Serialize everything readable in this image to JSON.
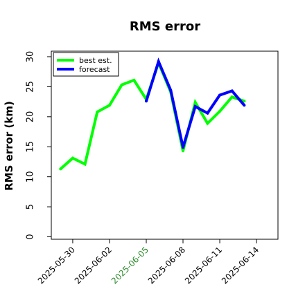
{
  "chart_data": {
    "type": "line",
    "title": "RMS error",
    "xlabel": "",
    "ylabel": "RMS error (km)",
    "ylim": [
      0,
      30
    ],
    "xlim": [
      "2025-05-28T06:00",
      "2025-06-15T18:00"
    ],
    "yticks": [
      0,
      5,
      10,
      15,
      20,
      25,
      30
    ],
    "xticks": [
      {
        "date": "2025-05-30",
        "label": "2025-05-30"
      },
      {
        "date": "2025-06-02",
        "label": "2025-06-02"
      },
      {
        "date": "2025-06-05",
        "label": "2025-06-05"
      },
      {
        "date": "2025-06-08",
        "label": "2025-06-08"
      },
      {
        "date": "2025-06-11",
        "label": "2025-06-11"
      },
      {
        "date": "2025-06-14",
        "label": "2025-06-14"
      }
    ],
    "highlight_tick_color": "#2e8b2e",
    "highlight_tick": "2025-06-05",
    "grid": false,
    "legend": "top-left",
    "series": [
      {
        "name": "best est.",
        "color": "#00ff00",
        "x": [
          "2025-05-29",
          "2025-05-30",
          "2025-05-31",
          "2025-06-01",
          "2025-06-02",
          "2025-06-03",
          "2025-06-04",
          "2025-06-05",
          "2025-06-06",
          "2025-06-07",
          "2025-06-08",
          "2025-06-09",
          "2025-06-10",
          "2025-06-11",
          "2025-06-12",
          "2025-06-13"
        ],
        "y": [
          11.3,
          13.1,
          12.1,
          20.8,
          21.9,
          25.3,
          26.1,
          22.9,
          29.0,
          24.1,
          14.3,
          22.4,
          18.9,
          20.9,
          23.3,
          22.6
        ]
      },
      {
        "name": "forecast",
        "color": "#0000ff",
        "x": [
          "2025-06-05",
          "2025-06-06",
          "2025-06-07",
          "2025-06-08",
          "2025-06-09",
          "2025-06-10",
          "2025-06-11",
          "2025-06-12",
          "2025-06-13"
        ],
        "y": [
          22.6,
          29.2,
          24.4,
          14.9,
          21.7,
          20.6,
          23.6,
          24.3,
          21.9
        ]
      }
    ]
  }
}
